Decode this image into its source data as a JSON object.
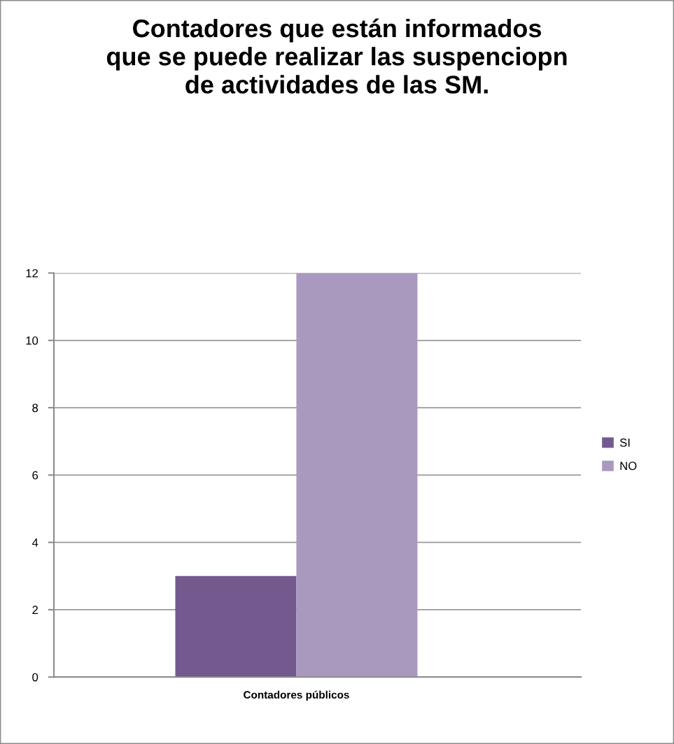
{
  "chart_data": {
    "type": "bar",
    "title": "Contadores que están informados\nque se puede realizar las suspenciopn\nde actividades de las SM.",
    "categories": [
      "Contadores públicos"
    ],
    "series": [
      {
        "name": "SI",
        "color": "#74598f",
        "values": [
          3
        ]
      },
      {
        "name": "NO",
        "color": "#a999be",
        "values": [
          12
        ]
      }
    ],
    "ylim": [
      0,
      12
    ],
    "yticks": [
      0,
      2,
      4,
      6,
      8,
      10,
      12
    ],
    "grid": "y",
    "legend": "right"
  }
}
